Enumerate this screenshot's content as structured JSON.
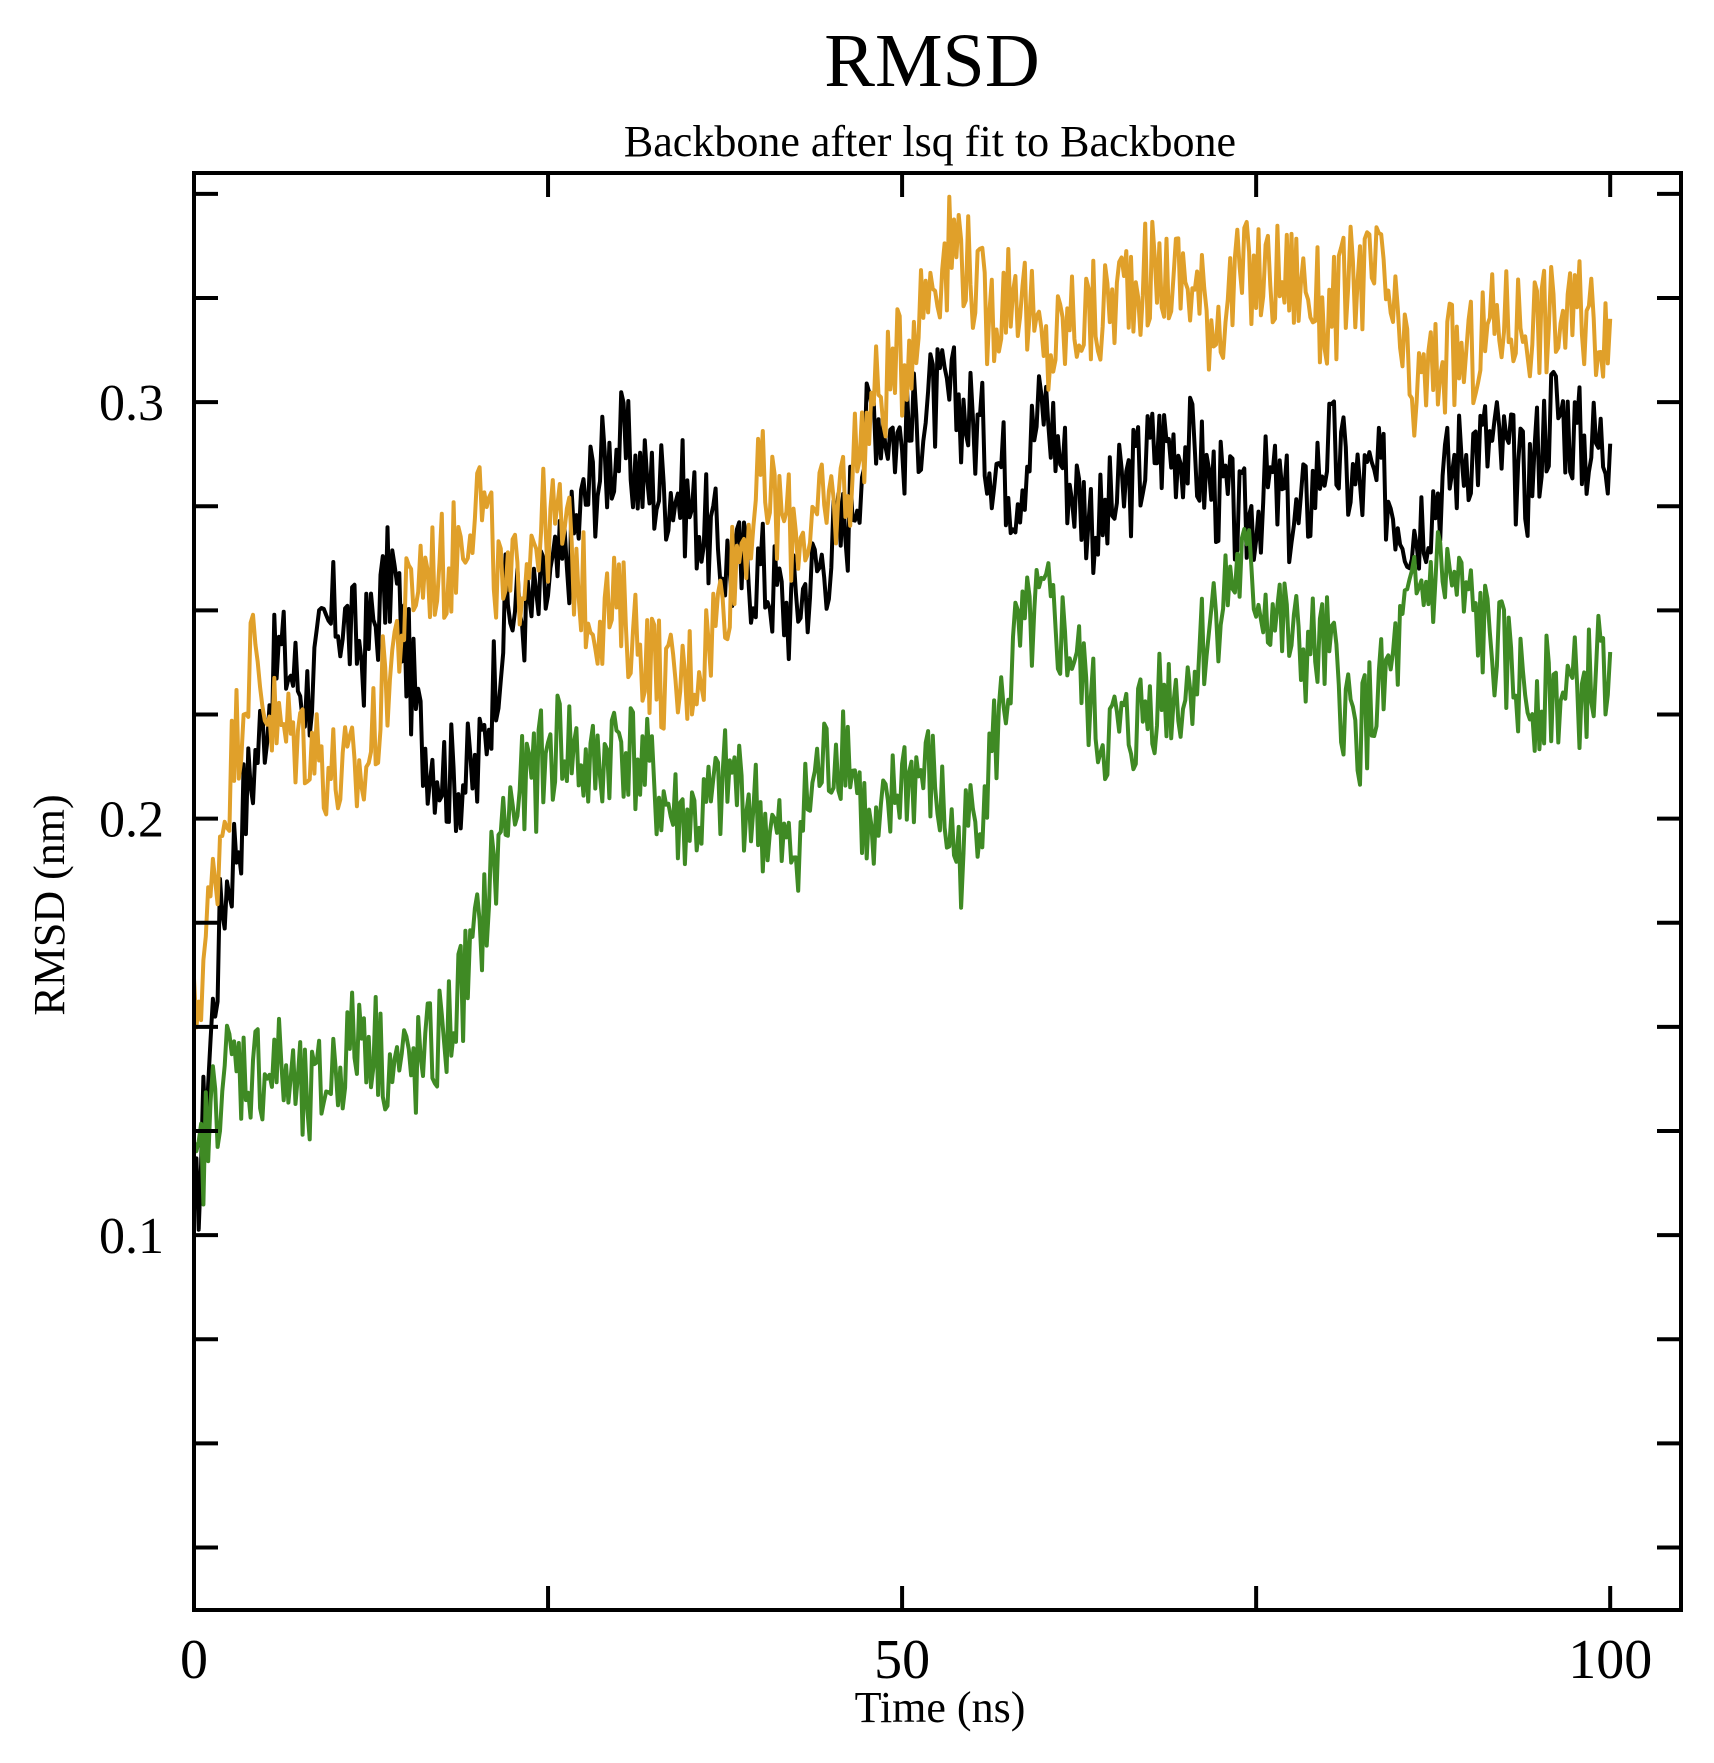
{
  "chart_data": {
    "type": "line",
    "title": "RMSD",
    "subtitle": "Backbone after lsq fit to Backbone",
    "xlabel": "Time (ns)",
    "ylabel": "RMSD (nm)",
    "xlim": [
      0,
      105
    ],
    "ylim": [
      0.01,
      0.355
    ],
    "x_ticks": [
      0,
      50,
      100
    ],
    "x_tick_labels": [
      "0",
      "50",
      "100"
    ],
    "y_ticks": [
      0.1,
      0.2,
      0.3
    ],
    "y_tick_labels": [
      "0.1",
      "0.2",
      "0.3"
    ],
    "grid": false,
    "series": [
      {
        "name": "black",
        "color": "#000000",
        "x": [
          0,
          2,
          4,
          6,
          8,
          10,
          12,
          14,
          16,
          18,
          20,
          22,
          24,
          26,
          28,
          30,
          32,
          34,
          36,
          38,
          40,
          42,
          44,
          46,
          48,
          50,
          52,
          54,
          56,
          58,
          60,
          62,
          64,
          66,
          68,
          70,
          72,
          74,
          76,
          78,
          80,
          82,
          84,
          86,
          88,
          90,
          92,
          94,
          96,
          98,
          100
        ],
        "y": [
          0.1,
          0.18,
          0.21,
          0.24,
          0.23,
          0.25,
          0.24,
          0.26,
          0.22,
          0.21,
          0.21,
          0.25,
          0.25,
          0.26,
          0.28,
          0.29,
          0.28,
          0.28,
          0.27,
          0.26,
          0.26,
          0.25,
          0.26,
          0.27,
          0.3,
          0.29,
          0.3,
          0.3,
          0.29,
          0.28,
          0.3,
          0.28,
          0.27,
          0.28,
          0.29,
          0.29,
          0.28,
          0.27,
          0.28,
          0.27,
          0.29,
          0.28,
          0.28,
          0.27,
          0.28,
          0.29,
          0.29,
          0.28,
          0.3,
          0.29,
          0.29
        ]
      },
      {
        "name": "orange",
        "color": "#e0a02a",
        "x": [
          0,
          2,
          4,
          6,
          8,
          10,
          12,
          14,
          16,
          18,
          20,
          22,
          24,
          26,
          28,
          30,
          32,
          34,
          36,
          38,
          40,
          42,
          44,
          46,
          48,
          50,
          52,
          54,
          56,
          58,
          60,
          62,
          64,
          66,
          68,
          70,
          72,
          74,
          76,
          78,
          80,
          82,
          84,
          86,
          88,
          90,
          92,
          94,
          96,
          98,
          100
        ],
        "y": [
          0.15,
          0.2,
          0.24,
          0.22,
          0.22,
          0.21,
          0.21,
          0.24,
          0.26,
          0.26,
          0.28,
          0.25,
          0.27,
          0.27,
          0.25,
          0.25,
          0.24,
          0.23,
          0.24,
          0.26,
          0.28,
          0.27,
          0.27,
          0.28,
          0.3,
          0.31,
          0.33,
          0.34,
          0.32,
          0.33,
          0.31,
          0.32,
          0.32,
          0.33,
          0.33,
          0.33,
          0.32,
          0.33,
          0.33,
          0.33,
          0.32,
          0.33,
          0.33,
          0.3,
          0.31,
          0.31,
          0.32,
          0.32,
          0.32,
          0.32,
          0.32
        ]
      },
      {
        "name": "green",
        "color": "#3f8a24",
        "x": [
          0,
          2,
          4,
          6,
          8,
          10,
          12,
          14,
          16,
          18,
          20,
          22,
          24,
          26,
          28,
          30,
          32,
          34,
          36,
          38,
          40,
          42,
          44,
          46,
          48,
          50,
          52,
          54,
          56,
          58,
          60,
          62,
          64,
          66,
          68,
          70,
          72,
          74,
          76,
          78,
          80,
          82,
          84,
          86,
          88,
          90,
          92,
          94,
          96,
          98,
          100
        ],
        "y": [
          0.11,
          0.14,
          0.14,
          0.14,
          0.13,
          0.14,
          0.15,
          0.14,
          0.14,
          0.15,
          0.17,
          0.2,
          0.21,
          0.22,
          0.21,
          0.22,
          0.21,
          0.2,
          0.2,
          0.21,
          0.2,
          0.19,
          0.21,
          0.22,
          0.19,
          0.21,
          0.21,
          0.19,
          0.21,
          0.24,
          0.25,
          0.24,
          0.22,
          0.22,
          0.23,
          0.23,
          0.25,
          0.26,
          0.25,
          0.24,
          0.24,
          0.22,
          0.23,
          0.25,
          0.26,
          0.25,
          0.24,
          0.23,
          0.23,
          0.23,
          0.24
        ]
      }
    ]
  }
}
